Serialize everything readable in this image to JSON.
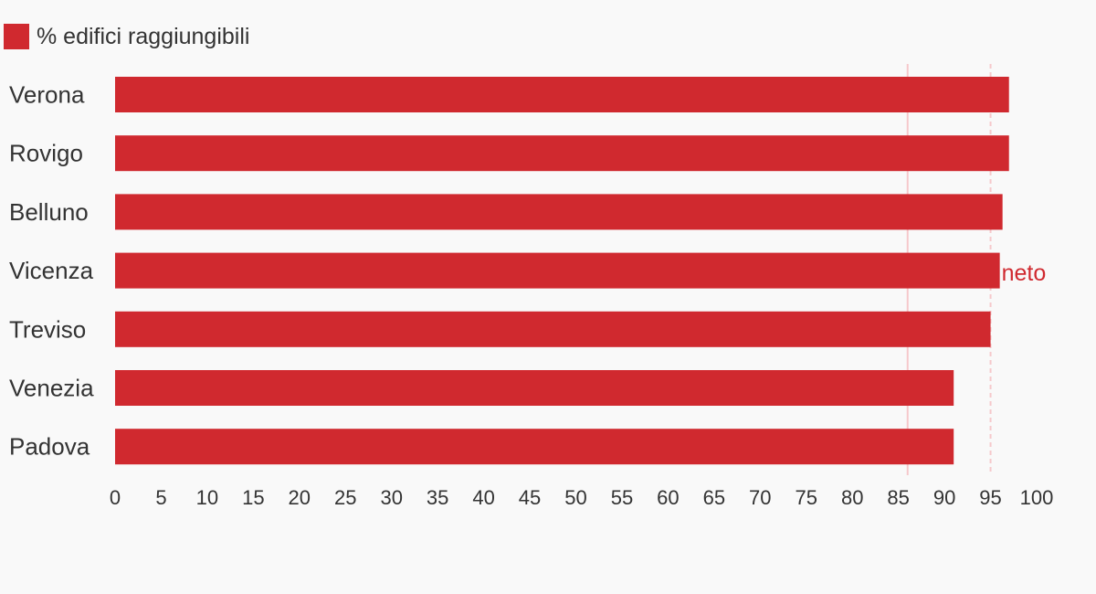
{
  "chart_data": {
    "type": "bar",
    "orientation": "horizontal",
    "categories": [
      "Verona",
      "Rovigo",
      "Belluno",
      "Vicenza",
      "Treviso",
      "Venezia",
      "Padova"
    ],
    "series": [
      {
        "name": "% edifici raggiungibili",
        "values": [
          97,
          97,
          96.3,
          96,
          95,
          91,
          91
        ]
      }
    ],
    "xlim": [
      0,
      100
    ],
    "xticks": [
      0,
      5,
      10,
      15,
      20,
      25,
      30,
      35,
      40,
      45,
      50,
      55,
      60,
      65,
      70,
      75,
      80,
      85,
      90,
      95,
      100
    ],
    "reference_lines": [
      {
        "value": 86,
        "style": "solid"
      },
      {
        "value": 95,
        "style": "dashed"
      }
    ],
    "annotations": [
      {
        "text": "neto",
        "category": "Vicenza"
      }
    ],
    "legend_position": "top-left",
    "grid": false
  },
  "colors": {
    "bar": "#d0292f",
    "reference_line": "#f6c8cb",
    "text": "#333333",
    "annotation": "#d0292f",
    "background": "#f9f9f9"
  }
}
